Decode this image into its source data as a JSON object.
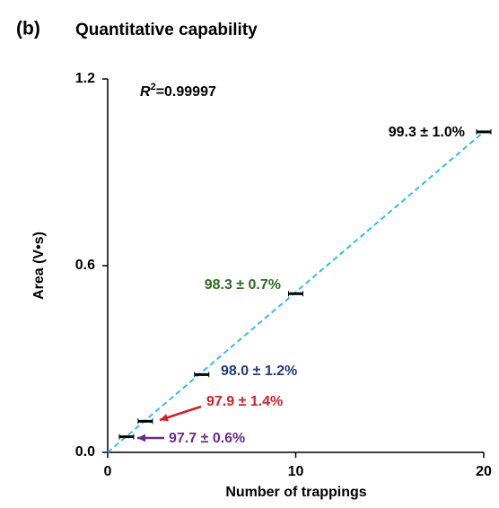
{
  "chart_data": {
    "type": "scatter",
    "panel_label": "(b)",
    "title": "Quantitative capability",
    "x_label": "Number of trappings",
    "y_label": "Area (V•s)",
    "r_squared": {
      "symbol": "R",
      "exponent": "2",
      "value": "=0.99997"
    },
    "x": [
      1,
      2,
      5,
      10,
      20
    ],
    "values": [
      0.05,
      0.1,
      0.25,
      0.51,
      1.03
    ],
    "color": "#000000",
    "fit_line": {
      "color": "#33bbee",
      "x": [
        0,
        20
      ],
      "y": [
        0,
        1.03
      ]
    },
    "annotations": [
      {
        "text": "97.7 ± 0.6%",
        "color": "#6a2c8e"
      },
      {
        "text": "97.9 ± 1.4%",
        "color": "#d0202a"
      },
      {
        "text": "98.0 ± 1.2%",
        "color": "#1f3a78"
      },
      {
        "text": "98.3 ± 0.7%",
        "color": "#2e6b1e"
      },
      {
        "text": "99.3 ± 1.0%",
        "color": "#000000"
      }
    ],
    "xlim": [
      0,
      20
    ],
    "ylim": [
      0,
      1.2
    ],
    "xticks": [
      0,
      10,
      20
    ],
    "yticks": [
      {
        "value": 0,
        "label": "0.0"
      },
      0.6,
      1.2
    ]
  }
}
